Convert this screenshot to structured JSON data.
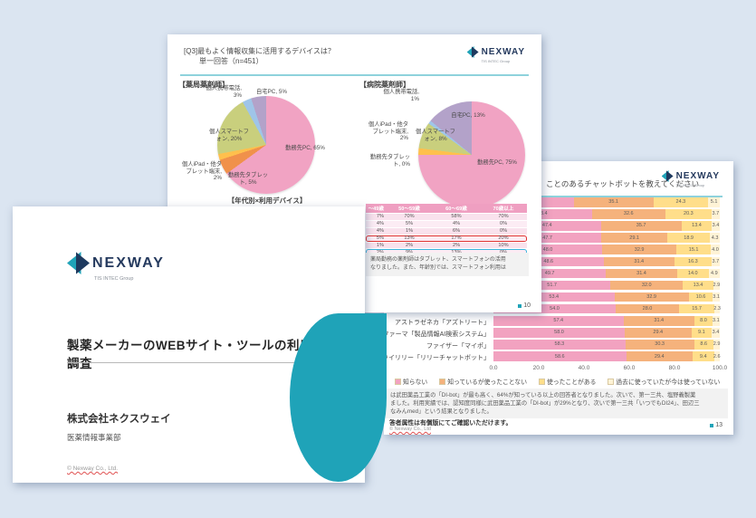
{
  "background_color": "#dbe5f1",
  "brand": {
    "name": "NEXWAY",
    "tagline": "TIS INTEC Group",
    "teal": "#1fa3b8",
    "navy": "#1e3a5f"
  },
  "slide_devices": {
    "header_line1": "[Q3]最もよく情報収集に活用するデバイスは？",
    "header_line2": "単一回答（n=451）",
    "left_pie_title": "【薬局薬剤師】",
    "right_pie_title": "【病院薬剤師】",
    "caption": "【年代別×利用デバイス】",
    "note_lines": [
      "薬局勤務の薬剤師はタブレット、スマートフォンの活用",
      "なりました。また、年齢別では、スマートフォン利用は"
    ],
    "page_number": "10"
  },
  "slide_title": {
    "title": "製薬メーカーのWEBサイト・ツールの利用に関する調査",
    "company": "株式会社ネクスウェイ",
    "department": "医薬情報事業部",
    "copyright": "© Nexway Co., Ltd."
  },
  "slide_chatbot": {
    "header_fragment": "ことのあるチャットボットを教えてください",
    "legend": [
      {
        "label": "知らない",
        "color": "#f2a2c0"
      },
      {
        "label": "知っているが使ったことない",
        "color": "#f5b27c"
      },
      {
        "label": "使ったことがある",
        "color": "#ffde8a"
      },
      {
        "label": "過去に使っていたが今は使っていない",
        "color": "#fff3d6"
      }
    ],
    "note_lines": [
      "は武田薬品工業の「DI-bot」が最も高く、64%が知っている以上の回答者となりました。次いで、第一三共、塩野義製薬",
      "ました。利用実績では、認知度同様に武田薬品工業の「DI-bot」が29%となり、次いで第一三共「いつでもDI24」、田辺三",
      "なみんmed」という結果となりました。"
    ],
    "bold_note": "答者属性は有償版にてご確認いただけます。",
    "copyright": "© Nexway Co., Ltd",
    "page_number": "13"
  },
  "chart_data": [
    {
      "type": "pie",
      "title": "【薬局薬剤師】",
      "labels": [
        "勤務先PC",
        "勤務先タブレット",
        "個人iPad・他タブレット端末",
        "個人スマートフォン",
        "個人携帯電話",
        "自宅PC"
      ],
      "values": [
        65,
        5,
        2,
        20,
        3,
        5
      ],
      "colors": [
        "#f1a3c3",
        "#f0914b",
        "#ffc04d",
        "#c9cf7d",
        "#9fc5e8",
        "#b3a2c9"
      ]
    },
    {
      "type": "pie",
      "title": "【病院薬剤師】",
      "labels": [
        "勤務先PC",
        "勤務先タブレット",
        "個人iPad・他タブレット端末",
        "個人スマートフォン",
        "個人携帯電話",
        "自宅PC"
      ],
      "values": [
        75,
        0,
        2,
        8,
        1,
        13
      ],
      "colors": [
        "#f1a3c3",
        "#f0914b",
        "#ffc04d",
        "#c9cf7d",
        "#9fc5e8",
        "#b3a2c9"
      ]
    },
    {
      "type": "table",
      "title": "【年代別×利用デバイス】",
      "columns": [
        "〜49歳",
        "50〜59歳",
        "60〜69歳",
        "70歳以上"
      ],
      "rows": [
        [
          "7%",
          "70%",
          "58%",
          "70%"
        ],
        [
          "4%",
          "5%",
          "4%",
          "0%"
        ],
        [
          "4%",
          "1%",
          "6%",
          "0%"
        ],
        [
          "5%",
          "13%",
          "17%",
          "20%"
        ],
        [
          "1%",
          "2%",
          "2%",
          "10%"
        ],
        [
          "2%",
          "9%",
          "13%",
          "0%"
        ]
      ],
      "highlight_red_row": 3,
      "highlight_blue_row": 5
    },
    {
      "type": "bar",
      "stacked": true,
      "orientation": "horizontal",
      "xlim": [
        0,
        100
      ],
      "x_ticks": [
        "0.0",
        "20.0",
        "40.0",
        "60.0",
        "80.0",
        "100.0"
      ],
      "series_names": [
        "知らない",
        "知っているが使ったことない",
        "使ったことがある",
        "過去に使っていたが今は使っていない"
      ],
      "colors": [
        "#f2a2c0",
        "#f5b27c",
        "#ffde8a",
        "#fff3d6"
      ],
      "rows": [
        {
          "label": "",
          "values": [
            35.5,
            35.1,
            24.3,
            5.1
          ],
          "first_value_label_hidden": true
        },
        {
          "label": "",
          "values": [
            43.4,
            32.6,
            20.3,
            3.7
          ]
        },
        {
          "label": "",
          "values": [
            47.4,
            35.7,
            13.4,
            3.4
          ]
        },
        {
          "label": "",
          "values": [
            47.7,
            29.1,
            18.9,
            4.3
          ]
        },
        {
          "label": "",
          "values": [
            48.0,
            32.9,
            15.1,
            4.0
          ]
        },
        {
          "label": "",
          "values": [
            48.6,
            31.4,
            16.3,
            3.7
          ]
        },
        {
          "label": "",
          "values": [
            49.7,
            31.4,
            14.0,
            4.9
          ]
        },
        {
          "label": "",
          "values": [
            51.7,
            32.0,
            13.4,
            2.9
          ]
        },
        {
          "label": "",
          "values": [
            53.4,
            32.9,
            10.6,
            3.1
          ]
        },
        {
          "label": "",
          "values": [
            54.0,
            28.0,
            15.7,
            2.3
          ]
        },
        {
          "label": "アストラゼネカ「アズトリート」",
          "values": [
            57.4,
            31.4,
            8.0,
            3.1
          ]
        },
        {
          "label": "ティスファーマ「製品情報AI検索システム」",
          "values": [
            58.0,
            29.4,
            9.1,
            3.4
          ]
        },
        {
          "label": "ファイザー「マイポ」",
          "values": [
            58.3,
            30.3,
            8.6,
            2.9
          ]
        },
        {
          "label": "日本イーライリリー「リリーチャットボット」",
          "values": [
            58.6,
            29.4,
            9.4,
            2.6
          ]
        }
      ]
    }
  ]
}
